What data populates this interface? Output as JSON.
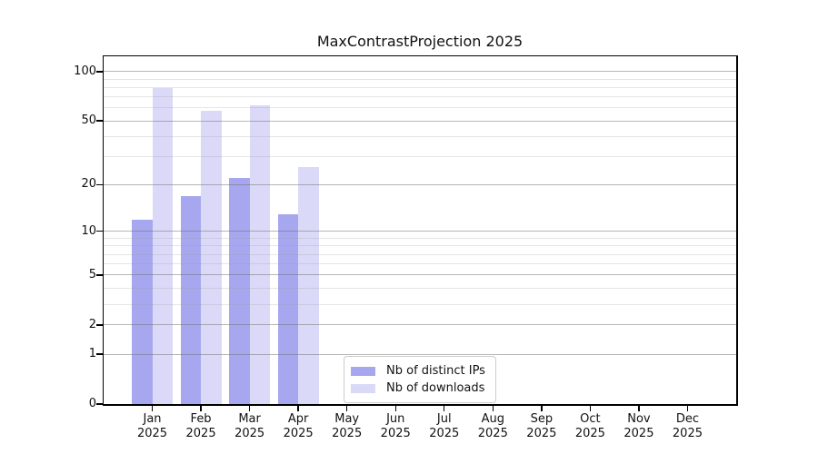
{
  "chart_data": {
    "type": "bar",
    "title": "MaxContrastProjection 2025",
    "scale": "log1p",
    "categories": [
      "Jan",
      "Feb",
      "Mar",
      "Apr",
      "May",
      "Jun",
      "Jul",
      "Aug",
      "Sep",
      "Oct",
      "Nov",
      "Dec"
    ],
    "category_year": "2025",
    "series": [
      {
        "name": "Nb of distinct IPs",
        "color": "#a7a7f0",
        "values": [
          12,
          17,
          22,
          13,
          null,
          null,
          null,
          null,
          null,
          null,
          null,
          null
        ]
      },
      {
        "name": "Nb of downloads",
        "color": "#dadaf8",
        "values": [
          79,
          58,
          62,
          26,
          null,
          null,
          null,
          null,
          null,
          null,
          null,
          null
        ]
      }
    ],
    "y_ticks": [
      0,
      1,
      2,
      5,
      10,
      20,
      50,
      100
    ],
    "y_minor_ticks": [
      3,
      4,
      6,
      7,
      8,
      9,
      30,
      40,
      60,
      70,
      80,
      90
    ],
    "ylim": [
      0,
      124
    ],
    "grid": "horizontal",
    "legend_position": "inside-bottom-center",
    "colors": {
      "major_grid": "#b6b6b6",
      "minor_grid": "#e5e5e5",
      "spine": "#000000",
      "background": "#ffffff"
    }
  }
}
